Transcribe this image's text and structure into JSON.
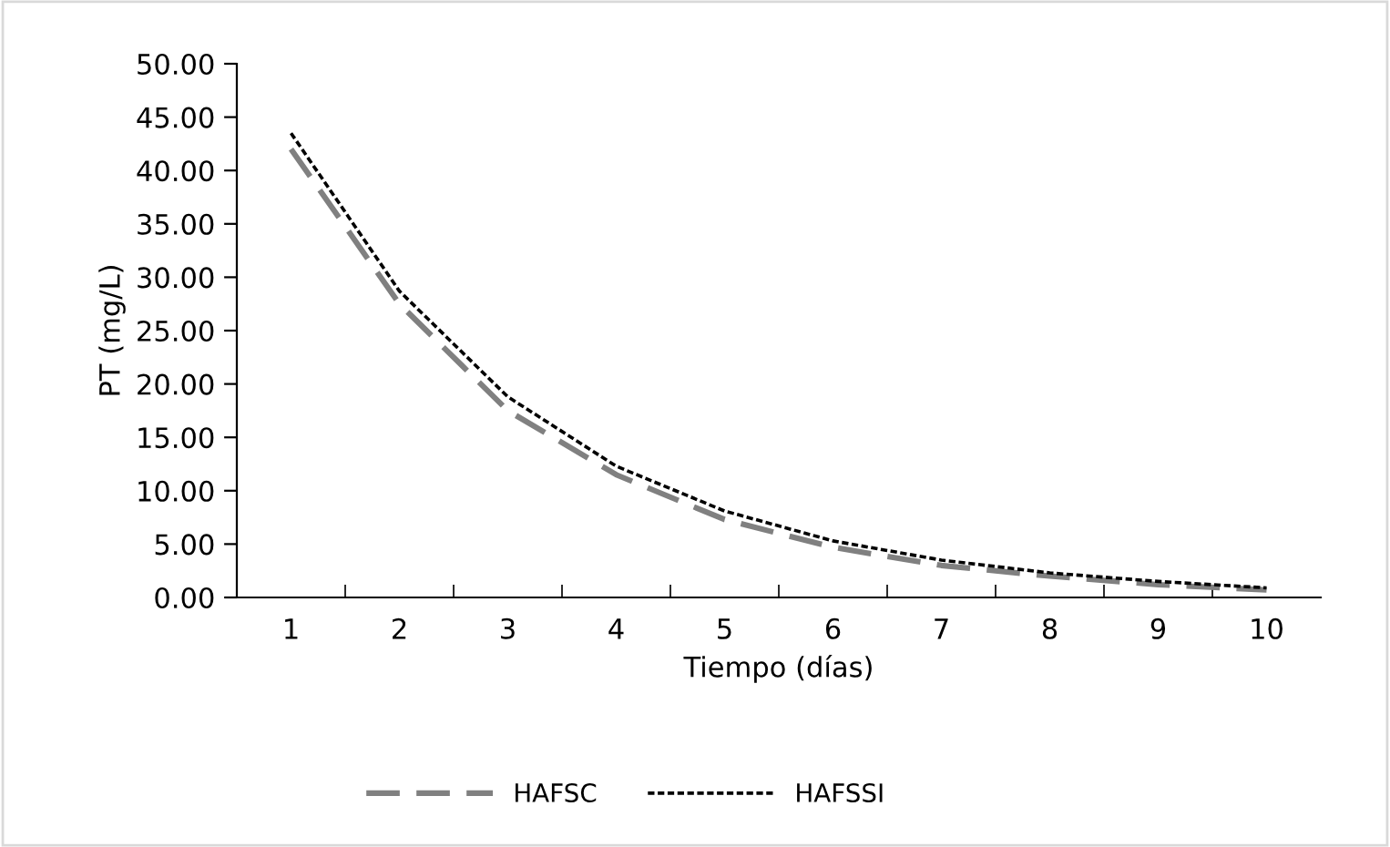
{
  "chart_data": {
    "type": "line",
    "xlabel": "Tiempo (días)",
    "ylabel": "PT (mg/L)",
    "categories": [
      "1",
      "2",
      "3",
      "4",
      "5",
      "6",
      "7",
      "8",
      "9",
      "10"
    ],
    "series": [
      {
        "name": "HAFSC",
        "color": "#808080",
        "line_style": "dashed",
        "values": [
          42.0,
          27.5,
          17.5,
          11.5,
          7.3,
          4.7,
          3.0,
          2.0,
          1.2,
          0.7
        ]
      },
      {
        "name": "HAFSSI",
        "color": "#000000",
        "line_style": "dotted",
        "values": [
          43.5,
          28.7,
          18.8,
          12.3,
          8.1,
          5.3,
          3.5,
          2.3,
          1.5,
          0.9
        ]
      }
    ],
    "ylim": [
      0,
      50
    ],
    "yticks": [
      {
        "value": 0,
        "label": "0.00"
      },
      {
        "value": 5,
        "label": "5.00"
      },
      {
        "value": 10,
        "label": "10.00"
      },
      {
        "value": 15,
        "label": "15.00"
      },
      {
        "value": 20,
        "label": "20.00"
      },
      {
        "value": 25,
        "label": "25.00"
      },
      {
        "value": 30,
        "label": "30.00"
      },
      {
        "value": 35,
        "label": "35.00"
      },
      {
        "value": 40,
        "label": "40.00"
      },
      {
        "value": 45,
        "label": "45.00"
      },
      {
        "value": 50,
        "label": "50.00"
      }
    ],
    "grid": false,
    "legend": "bottom",
    "marker": "none"
  }
}
